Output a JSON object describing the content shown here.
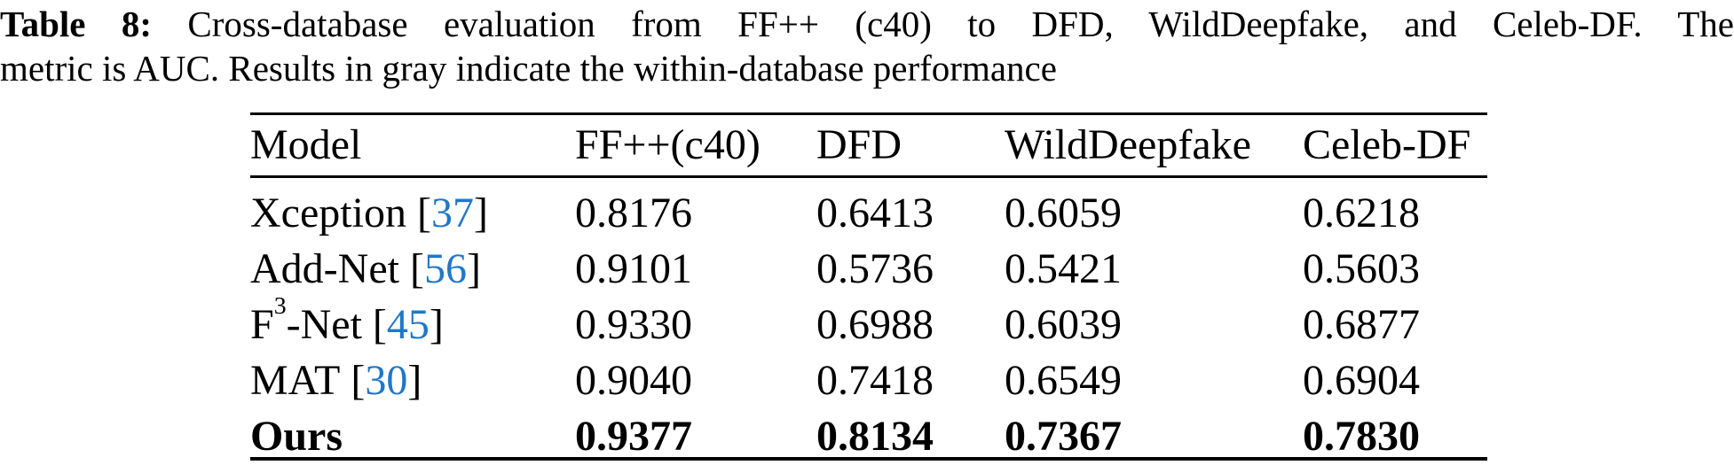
{
  "caption": {
    "label": "Table 8:",
    "line1": "Cross-database evaluation from FF++ (c40) to DFD, WildDeepfake, and Celeb-DF. The",
    "line2": "metric is AUC. Results in gray indicate the within-database performance"
  },
  "table": {
    "columns": [
      "Model",
      "FF++(c40)",
      "DFD",
      "WildDeepfake",
      "Celeb-DF"
    ],
    "rows": [
      {
        "model": "Xception",
        "cite": "37",
        "bold": false,
        "values": [
          "0.8176",
          "0.6413",
          "0.6059",
          "0.6218"
        ]
      },
      {
        "model": "Add-Net",
        "cite": "56",
        "bold": false,
        "values": [
          "0.9101",
          "0.5736",
          "0.5421",
          "0.5603"
        ]
      },
      {
        "model": "F",
        "sup": "3",
        "model2": "-Net",
        "cite": "45",
        "bold": false,
        "values": [
          "0.9330",
          "0.6988",
          "0.6039",
          "0.6877"
        ]
      },
      {
        "model": "MAT",
        "cite": "30",
        "bold": false,
        "values": [
          "0.9040",
          "0.7418",
          "0.6549",
          "0.6904"
        ]
      },
      {
        "model": "Ours",
        "cite": null,
        "bold": true,
        "values": [
          "0.9377",
          "0.8134",
          "0.7367",
          "0.7830"
        ]
      }
    ],
    "colors": {
      "text": "#000000",
      "citation": "#2077c8"
    }
  }
}
